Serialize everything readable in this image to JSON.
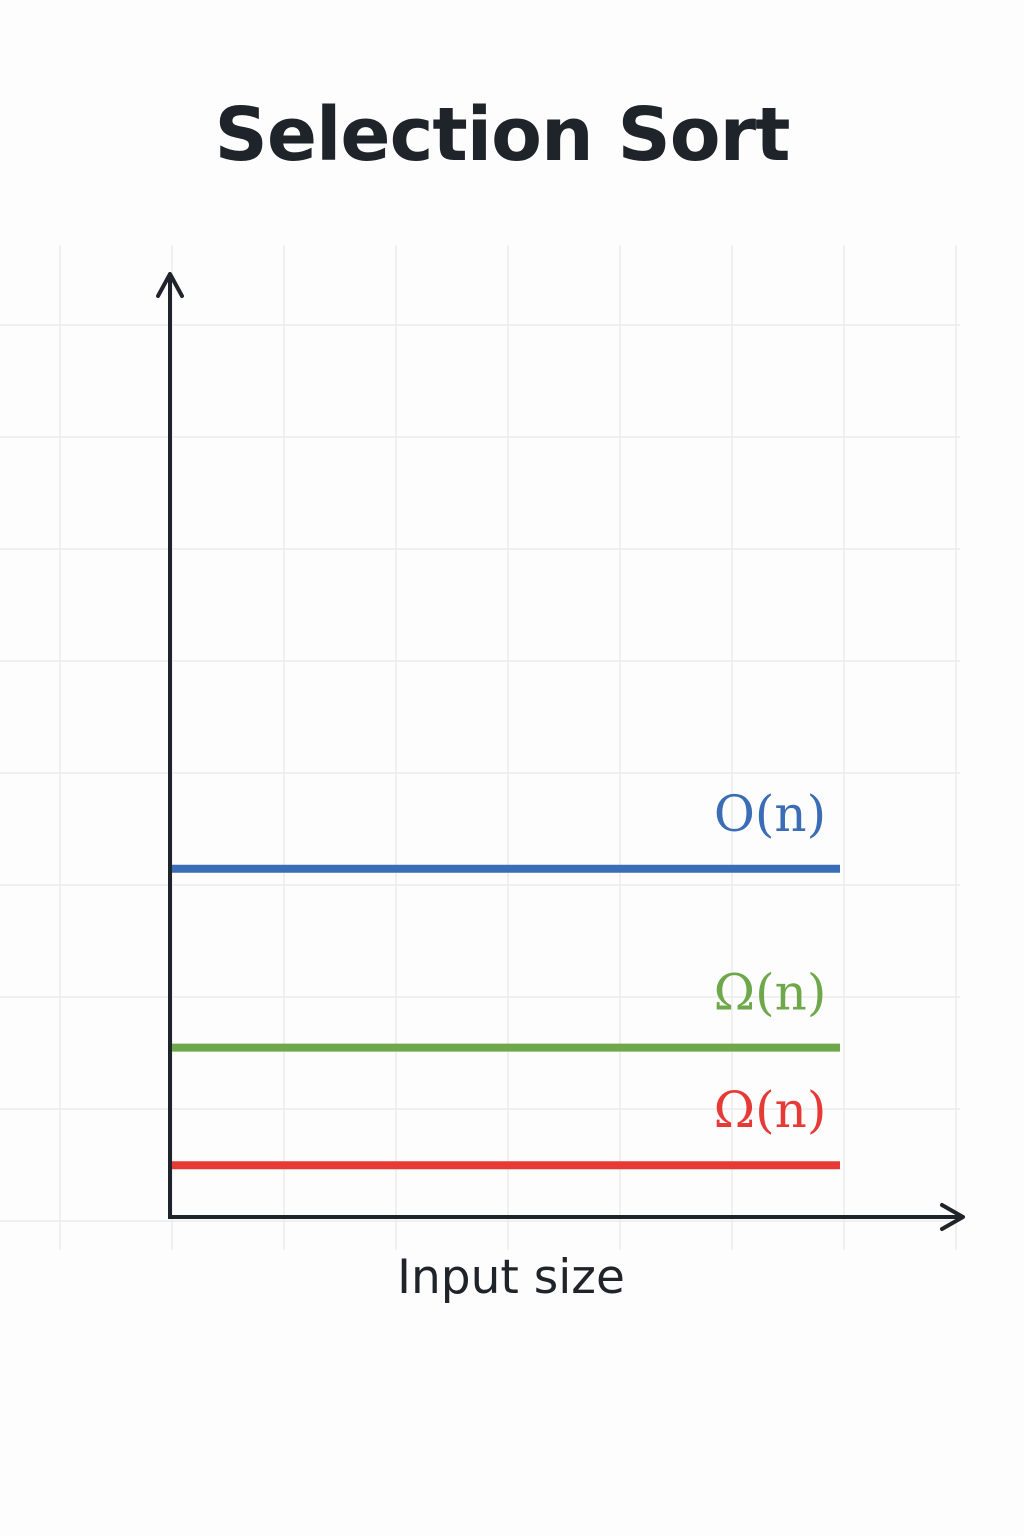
{
  "chart_data": {
    "type": "line",
    "title": "Selection Sort",
    "xlabel": "Input size",
    "ylabel": "",
    "grid": true,
    "x": [
      0,
      1
    ],
    "ylim": [
      0,
      10
    ],
    "series": [
      {
        "name": "O(n)",
        "values": [
          3.7,
          3.7
        ],
        "color": "#3a6db5"
      },
      {
        "name": "Ω(n)",
        "values": [
          1.8,
          1.8
        ],
        "color": "#6fa84a"
      },
      {
        "name": "Ω(n)",
        "values": [
          0.55,
          0.55
        ],
        "color": "#e63a36"
      }
    ]
  }
}
